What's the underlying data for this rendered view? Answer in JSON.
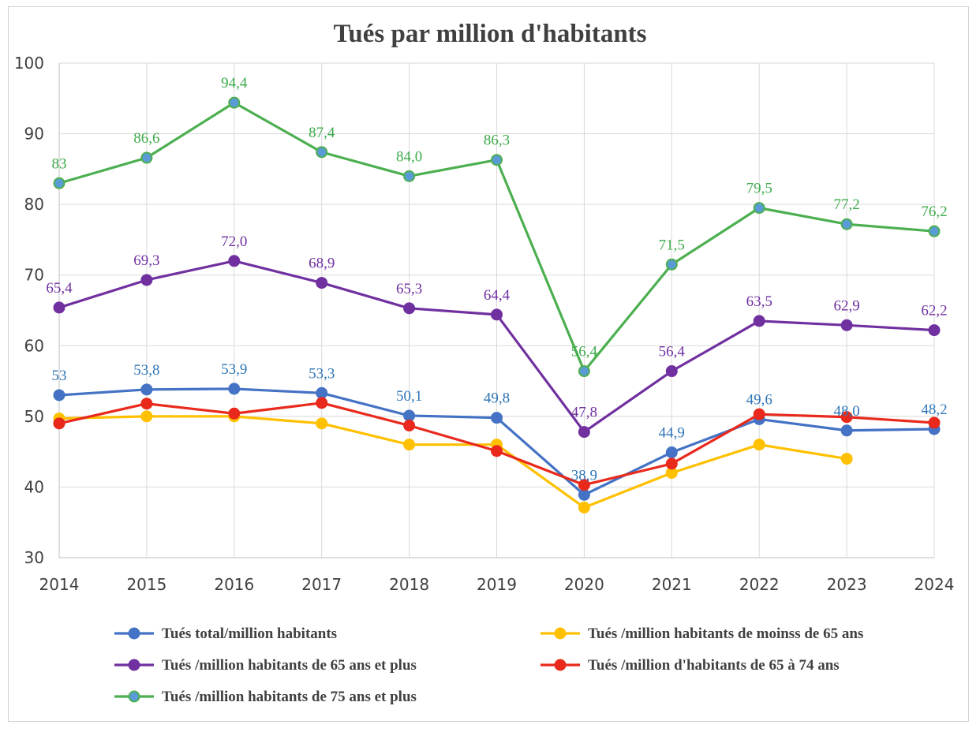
{
  "chart_data": {
    "type": "line",
    "title": "Tués par million d'habitants",
    "x": [
      "2014",
      "2015",
      "2016",
      "2017",
      "2018",
      "2019",
      "2020",
      "2021",
      "2022",
      "2023",
      "2024"
    ],
    "ylim": [
      30,
      100
    ],
    "yticks": [
      30,
      40,
      50,
      60,
      70,
      80,
      90,
      100
    ],
    "grid": true,
    "legend_position": "bottom",
    "series": [
      {
        "name": "Tués total/million habitants",
        "color": "#4472C4",
        "marker_fill": "#4472C4",
        "values": [
          53,
          53.8,
          53.9,
          53.3,
          50.1,
          49.8,
          38.9,
          44.9,
          49.6,
          48.0,
          48.2
        ],
        "labels": [
          "53",
          "53,8",
          "53,9",
          "53,3",
          "50,1",
          "49,8",
          "38,9",
          "44,9",
          "49,6",
          "48,0",
          "48,2"
        ],
        "label_color": "#2E75B6"
      },
      {
        "name": "Tués /million habitants de moinss de 65 ans",
        "color": "#FFC000",
        "marker_fill": "#FFC000",
        "values": [
          49.7,
          50.0,
          50.0,
          49.0,
          46.0,
          46.0,
          37.1,
          42.0,
          46.0,
          44.0,
          null
        ],
        "labels": [],
        "label_color": "#FFC000"
      },
      {
        "name": "Tués /million habitants de 65 ans et plus",
        "color": "#7030A0",
        "marker_fill": "#7030A0",
        "values": [
          65.4,
          69.3,
          72.0,
          68.9,
          65.3,
          64.4,
          47.8,
          56.4,
          63.5,
          62.9,
          62.2
        ],
        "labels": [
          "65,4",
          "69,3",
          "72,0",
          "68,9",
          "65,3",
          "64,4",
          "47,8",
          "56,4",
          "63,5",
          "62,9",
          "62,2"
        ],
        "label_color": "#7030A0"
      },
      {
        "name": "Tués /million d'habitants de  65 à 74 ans",
        "color": "#E8291C",
        "marker_fill": "#E8291C",
        "values": [
          49.0,
          51.8,
          50.4,
          51.9,
          48.7,
          45.1,
          40.3,
          43.3,
          50.3,
          49.9,
          49.1
        ],
        "labels": [],
        "label_color": "#E8291C"
      },
      {
        "name": "Tués /million habitants de 75 ans et plus",
        "color": "#4CAF50",
        "marker_fill": "#5B9BD5",
        "values": [
          83,
          86.6,
          94.4,
          87.4,
          84.0,
          86.3,
          56.4,
          71.5,
          79.5,
          77.2,
          76.2
        ],
        "labels": [
          "83",
          "86,6",
          "94,4",
          "87,4",
          "84,0",
          "86,3",
          "56,4",
          "71,5",
          "79,5",
          "77,2",
          "76,2"
        ],
        "label_color": "#3DAA4A"
      }
    ]
  }
}
